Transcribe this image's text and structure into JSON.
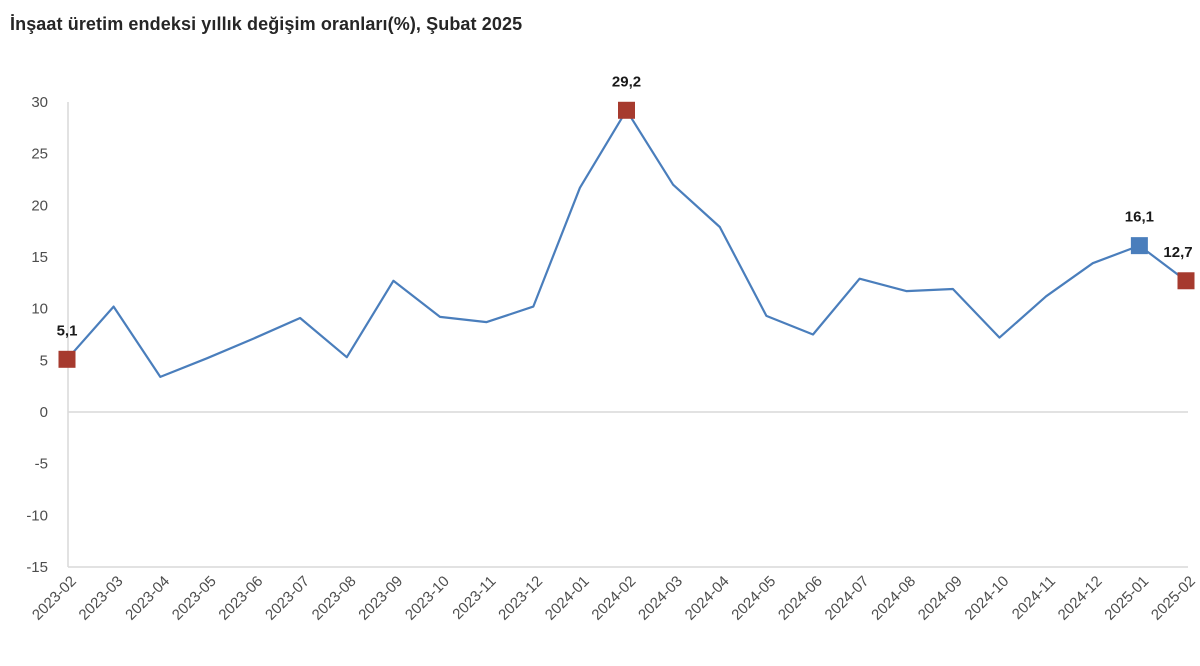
{
  "title": "İnşaat üretim endeksi yıllık değişim oranları(%), Şubat 2025",
  "chart_data": {
    "type": "line",
    "title": "İnşaat üretim endeksi yıllık değişim oranları(%), Şubat 2025",
    "xlabel": "",
    "ylabel": "",
    "ylim": [
      -15,
      30
    ],
    "yticks": [
      30,
      25,
      20,
      15,
      10,
      5,
      0,
      -5,
      -10,
      -15
    ],
    "grid": "zero-line-and-bottom-border-only",
    "legend": "none",
    "line_color": "#4a7ebc",
    "axis_line_color": "#d9d9d9",
    "categories": [
      "2023-02",
      "2023-03",
      "2023-04",
      "2023-05",
      "2023-06",
      "2023-07",
      "2023-08",
      "2023-09",
      "2023-10",
      "2023-11",
      "2023-12",
      "2024-01",
      "2024-02",
      "2024-03",
      "2024-04",
      "2024-05",
      "2024-06",
      "2024-07",
      "2024-08",
      "2024-09",
      "2024-10",
      "2024-11",
      "2024-12",
      "2025-01",
      "2025-02"
    ],
    "values": [
      5.1,
      10.2,
      3.4,
      5.2,
      7.1,
      9.1,
      5.3,
      12.7,
      9.2,
      8.7,
      10.2,
      21.7,
      29.2,
      22.0,
      17.9,
      9.3,
      7.5,
      12.9,
      11.7,
      11.9,
      7.2,
      11.2,
      14.4,
      16.1,
      12.7
    ],
    "labeled_points": [
      {
        "category": "2023-02",
        "value": 5.1,
        "label": "5,1",
        "marker_color": "#a63a2e"
      },
      {
        "category": "2024-02",
        "value": 29.2,
        "label": "29,2",
        "marker_color": "#a63a2e"
      },
      {
        "category": "2025-01",
        "value": 16.1,
        "label": "16,1",
        "marker_color": "#4a7ebc"
      },
      {
        "category": "2025-02",
        "value": 12.7,
        "label": "12,7",
        "marker_color": "#a63a2e"
      }
    ]
  },
  "colors": {
    "background": "#ffffff",
    "title_text": "#262626",
    "tick_text": "#4d4d4d",
    "line": "#4a7ebc",
    "marker_red": "#a63a2e",
    "marker_blue": "#4a7ebc",
    "axis_lines": "#d9d9d9",
    "point_label_text": "#1a1a1a"
  }
}
